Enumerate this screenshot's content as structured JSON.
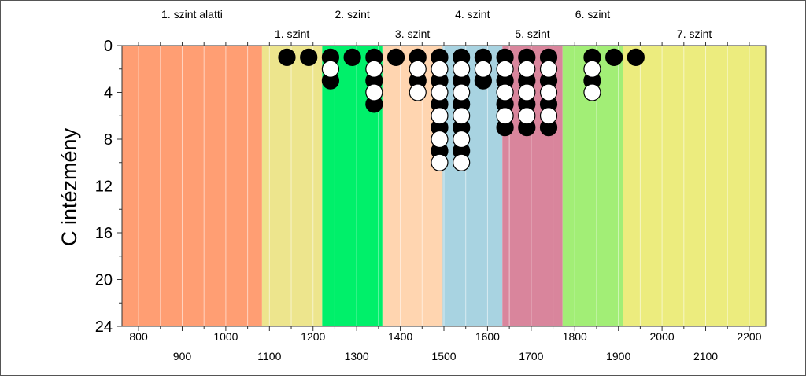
{
  "chart_data": {
    "type": "scatter",
    "ylabel": "C intézmény",
    "xlim": [
      762,
      2238
    ],
    "ylim": [
      0,
      24
    ],
    "y_inverted": true,
    "x_ticks_upper": [
      800,
      1000,
      1200,
      1400,
      1600,
      1800,
      2000,
      2200
    ],
    "x_ticks_lower": [
      900,
      1100,
      1300,
      1500,
      1700,
      1900,
      2100
    ],
    "y_ticks": [
      0,
      4,
      8,
      12,
      16,
      20,
      24
    ],
    "grid": true,
    "bands": [
      {
        "label": "1. szint alatti",
        "x_start": 762,
        "x_end": 1083,
        "color": "#FF9E73",
        "label_row": "top"
      },
      {
        "label": "1. szint",
        "x_start": 1083,
        "x_end": 1221,
        "color": "#EDE58D",
        "label_row": "bottom"
      },
      {
        "label": "2. szint",
        "x_start": 1221,
        "x_end": 1359,
        "color": "#00F06A",
        "label_row": "top"
      },
      {
        "label": "3. szint",
        "x_start": 1359,
        "x_end": 1497,
        "color": "#FFD5B0",
        "label_row": "bottom"
      },
      {
        "label": "4. szint",
        "x_start": 1497,
        "x_end": 1634,
        "color": "#A8D3E1",
        "label_row": "top"
      },
      {
        "label": "5. szint",
        "x_start": 1634,
        "x_end": 1772,
        "color": "#D9859C",
        "label_row": "bottom"
      },
      {
        "label": "6. szint",
        "x_start": 1772,
        "x_end": 1910,
        "color": "#A2EE76",
        "label_row": "top"
      },
      {
        "label": "7. szint",
        "x_start": 1910,
        "x_end": 2238,
        "color": "#ECEC7E",
        "label_row": "bottom"
      }
    ],
    "series": [
      {
        "color": "#000000",
        "stroke": "#000000",
        "points": [
          [
            1140,
            1
          ],
          [
            1190,
            1
          ],
          [
            1240,
            1
          ],
          [
            1240,
            3
          ],
          [
            1290,
            1
          ],
          [
            1340,
            1
          ],
          [
            1340,
            3
          ],
          [
            1340,
            5
          ],
          [
            1390,
            1
          ],
          [
            1440,
            1
          ],
          [
            1440,
            3
          ],
          [
            1490,
            1
          ],
          [
            1490,
            3
          ],
          [
            1490,
            5
          ],
          [
            1490,
            7
          ],
          [
            1490,
            9
          ],
          [
            1540,
            1
          ],
          [
            1540,
            3
          ],
          [
            1540,
            5
          ],
          [
            1540,
            7
          ],
          [
            1540,
            9
          ],
          [
            1590,
            1
          ],
          [
            1590,
            3
          ],
          [
            1640,
            1
          ],
          [
            1640,
            3
          ],
          [
            1640,
            5
          ],
          [
            1640,
            7
          ],
          [
            1690,
            1
          ],
          [
            1690,
            3
          ],
          [
            1690,
            5
          ],
          [
            1690,
            7
          ],
          [
            1740,
            1
          ],
          [
            1740,
            3
          ],
          [
            1740,
            5
          ],
          [
            1740,
            7
          ],
          [
            1840,
            1
          ],
          [
            1840,
            3
          ],
          [
            1890,
            1
          ],
          [
            1940,
            1
          ]
        ]
      },
      {
        "color": "#FFFFFF",
        "stroke": "#000000",
        "points": [
          [
            1240,
            2
          ],
          [
            1340,
            2
          ],
          [
            1340,
            4
          ],
          [
            1440,
            2
          ],
          [
            1440,
            4
          ],
          [
            1490,
            2
          ],
          [
            1490,
            4
          ],
          [
            1490,
            6
          ],
          [
            1490,
            8
          ],
          [
            1490,
            10
          ],
          [
            1540,
            2
          ],
          [
            1540,
            4
          ],
          [
            1540,
            6
          ],
          [
            1540,
            8
          ],
          [
            1540,
            10
          ],
          [
            1590,
            2
          ],
          [
            1640,
            2
          ],
          [
            1640,
            4
          ],
          [
            1640,
            6
          ],
          [
            1690,
            2
          ],
          [
            1690,
            4
          ],
          [
            1690,
            6
          ],
          [
            1740,
            2
          ],
          [
            1740,
            4
          ],
          [
            1740,
            6
          ],
          [
            1840,
            2
          ],
          [
            1840,
            4
          ]
        ]
      }
    ]
  }
}
